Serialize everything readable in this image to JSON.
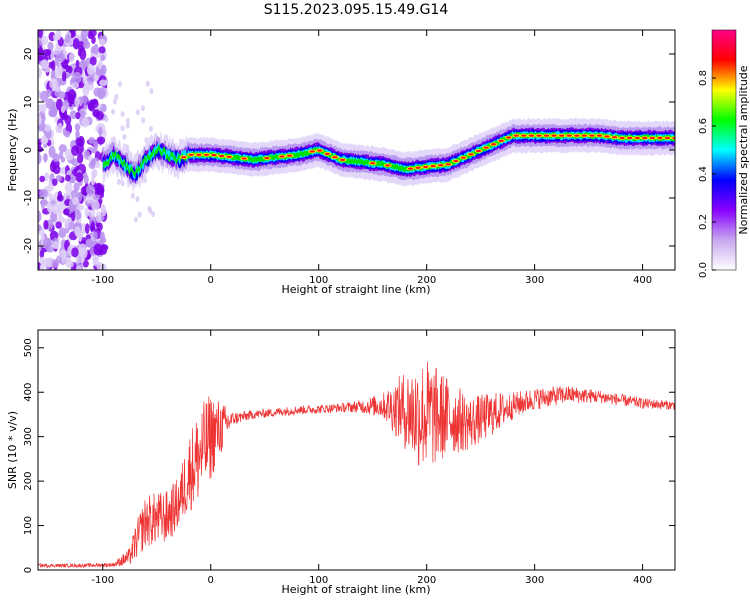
{
  "title": "S115.2023.095.15.49.G14",
  "chart_data": [
    {
      "type": "heatmap",
      "xlabel": "Height of straight line (km)",
      "ylabel": "Frequency (Hz)",
      "xlim": [
        -160,
        430
      ],
      "ylim": [
        -25,
        25
      ],
      "xticks": [
        -100,
        0,
        100,
        200,
        300,
        400
      ],
      "yticks": [
        -20,
        -10,
        0,
        10,
        20
      ],
      "colorbar": {
        "label": "Normalized spectral amplitude",
        "range": [
          0,
          1
        ],
        "ticks": [
          "0.0",
          "0.2",
          "0.4",
          "0.6",
          "0.8"
        ],
        "colors": [
          "#ffffff",
          "#c8a8f0",
          "#8800ff",
          "#0000ff",
          "#00ffff",
          "#00ff00",
          "#ffff00",
          "#ff0000",
          "#ff0088"
        ]
      },
      "ridge": {
        "x": [
          -100,
          -90,
          -80,
          -70,
          -60,
          -50,
          -40,
          -30,
          -20,
          0,
          20,
          40,
          60,
          80,
          100,
          120,
          140,
          160,
          180,
          200,
          220,
          240,
          260,
          280,
          300,
          320,
          340,
          360,
          380,
          400,
          430
        ],
        "freq": [
          -3,
          -1,
          -3,
          -5,
          -2,
          0,
          -1,
          -2,
          -1,
          -1,
          -1.5,
          -2,
          -1.5,
          -1,
          0,
          -2,
          -2.5,
          -3,
          -4,
          -3.5,
          -3,
          -1,
          1,
          3,
          3,
          3,
          3,
          3,
          2.5,
          2.5,
          2.5
        ]
      }
    },
    {
      "type": "line",
      "xlabel": "Height of straight line (km)",
      "ylabel": "SNR (10 * v/v)",
      "xlim": [
        -160,
        430
      ],
      "ylim": [
        0,
        540
      ],
      "xticks": [
        -100,
        0,
        100,
        200,
        300,
        400
      ],
      "yticks": [
        0,
        100,
        200,
        300,
        400,
        500
      ],
      "series_color": "#ee3333",
      "envelope": {
        "x": [
          -160,
          -120,
          -90,
          -75,
          -70,
          -60,
          -40,
          -30,
          -20,
          -10,
          0,
          10,
          20,
          40,
          60,
          80,
          100,
          120,
          140,
          160,
          180,
          190,
          200,
          210,
          220,
          240,
          260,
          280,
          300,
          330,
          360,
          400,
          430
        ],
        "mean": [
          10,
          10,
          12,
          30,
          60,
          110,
          120,
          150,
          220,
          260,
          300,
          320,
          340,
          350,
          355,
          360,
          362,
          365,
          368,
          370,
          360,
          350,
          350,
          345,
          345,
          330,
          350,
          370,
          385,
          395,
          390,
          375,
          370
        ],
        "spread": [
          4,
          4,
          5,
          20,
          40,
          60,
          60,
          60,
          90,
          110,
          100,
          60,
          15,
          10,
          10,
          10,
          10,
          10,
          15,
          30,
          90,
          120,
          130,
          110,
          90,
          60,
          50,
          30,
          25,
          20,
          15,
          12,
          10
        ]
      }
    }
  ]
}
